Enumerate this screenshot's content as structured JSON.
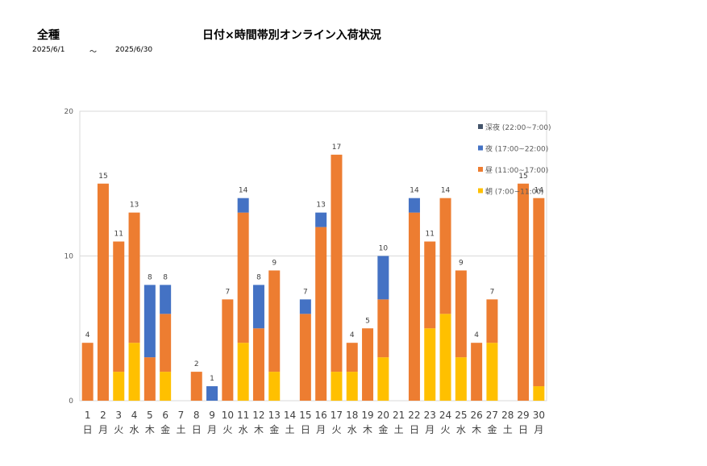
{
  "header": {
    "category": "全種",
    "title": "日付×時間帯別オンライン入荷状況",
    "date_from": "2025/6/1",
    "date_sep": "～",
    "date_to": "2025/6/30"
  },
  "chart_data": {
    "type": "bar",
    "stacked": true,
    "ylim": [
      0,
      20
    ],
    "yticks": [
      0,
      10,
      20
    ],
    "grid": true,
    "legend_position": "top-right",
    "categories": [
      "1",
      "2",
      "3",
      "4",
      "5",
      "6",
      "7",
      "8",
      "9",
      "10",
      "11",
      "12",
      "13",
      "14",
      "15",
      "16",
      "17",
      "18",
      "19",
      "20",
      "21",
      "22",
      "23",
      "24",
      "25",
      "26",
      "27",
      "28",
      "29",
      "30"
    ],
    "weekdays": [
      "日",
      "月",
      "火",
      "水",
      "木",
      "金",
      "土",
      "日",
      "月",
      "火",
      "水",
      "木",
      "金",
      "土",
      "日",
      "月",
      "火",
      "水",
      "木",
      "金",
      "土",
      "日",
      "月",
      "火",
      "水",
      "木",
      "金",
      "土",
      "日",
      "月"
    ],
    "series": [
      {
        "name": "朝 (7:00~11:00)",
        "color": "#FFC000",
        "values": [
          0,
          0,
          2,
          4,
          0,
          2,
          0,
          0,
          0,
          0,
          4,
          0,
          2,
          0,
          0,
          0,
          2,
          2,
          0,
          3,
          0,
          0,
          5,
          6,
          3,
          0,
          4,
          0,
          0,
          1
        ]
      },
      {
        "name": "昼 (11:00~17:00)",
        "color": "#ED7D31",
        "values": [
          4,
          15,
          9,
          9,
          3,
          4,
          0,
          2,
          0,
          7,
          9,
          5,
          7,
          0,
          6,
          12,
          15,
          2,
          5,
          4,
          0,
          13,
          6,
          8,
          6,
          4,
          3,
          0,
          15,
          13
        ]
      },
      {
        "name": "夜 (17:00~22:00)",
        "color": "#4472C4",
        "values": [
          0,
          0,
          0,
          0,
          5,
          2,
          0,
          0,
          1,
          0,
          1,
          3,
          0,
          0,
          1,
          1,
          0,
          0,
          0,
          3,
          0,
          1,
          0,
          0,
          0,
          0,
          0,
          0,
          0,
          0
        ]
      },
      {
        "name": "深夜 (22:00~7:00)",
        "color": "#44546A",
        "values": [
          0,
          0,
          0,
          0,
          0,
          0,
          0,
          0,
          0,
          0,
          0,
          0,
          0,
          0,
          0,
          0,
          0,
          0,
          0,
          0,
          0,
          0,
          0,
          0,
          0,
          0,
          0,
          0,
          0,
          0
        ]
      }
    ],
    "totals": [
      4,
      15,
      11,
      13,
      8,
      8,
      null,
      2,
      1,
      7,
      14,
      8,
      9,
      null,
      7,
      13,
      17,
      4,
      5,
      10,
      null,
      14,
      11,
      14,
      9,
      4,
      7,
      null,
      15,
      14
    ],
    "legend_order": [
      3,
      2,
      1,
      0
    ]
  }
}
